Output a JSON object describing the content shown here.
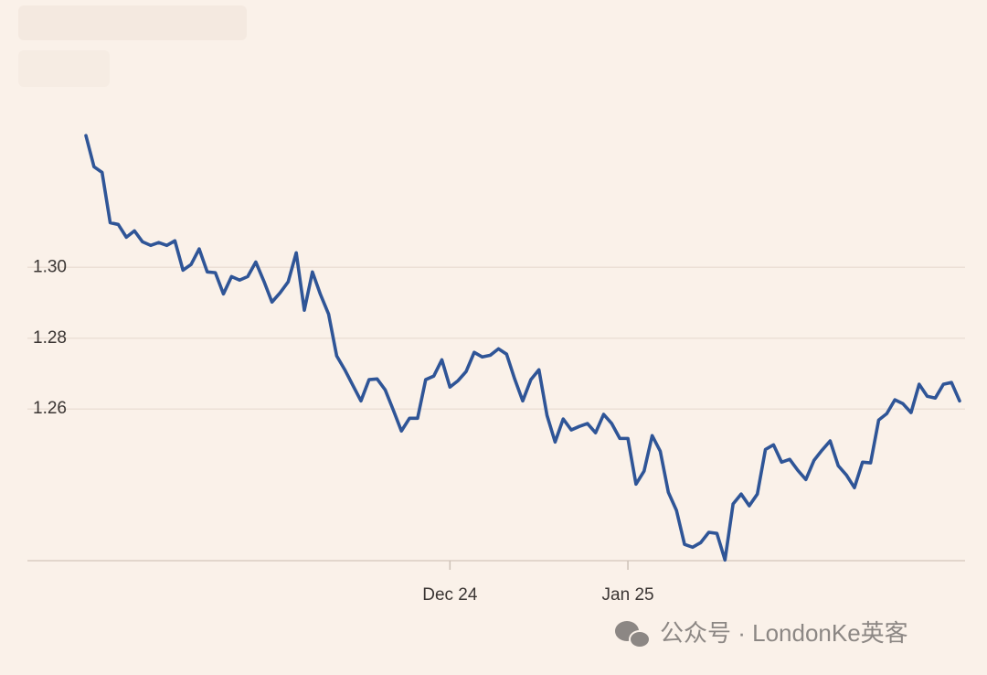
{
  "chart_data": {
    "type": "line",
    "categories": [
      null,
      null,
      null,
      null,
      null,
      null,
      null,
      null,
      null,
      null,
      null,
      null,
      null,
      null,
      null,
      null,
      null,
      null,
      null,
      null,
      null,
      null,
      null,
      null,
      null,
      null,
      null,
      null,
      null,
      null,
      null,
      null,
      null,
      null,
      null,
      null,
      null,
      null,
      null,
      null,
      null,
      null,
      null,
      null,
      null,
      "Dec 24",
      null,
      null,
      null,
      null,
      null,
      null,
      null,
      null,
      null,
      null,
      null,
      null,
      null,
      null,
      null,
      null,
      null,
      null,
      null,
      null,
      null,
      "Jan 25",
      null,
      null,
      null,
      null,
      null,
      null,
      null,
      null,
      null,
      null,
      null,
      null,
      null,
      null,
      null,
      null,
      null,
      null,
      null,
      null,
      null,
      null,
      null,
      null,
      null,
      null,
      null,
      null,
      null,
      null,
      null,
      null,
      null,
      null,
      null,
      null,
      null,
      null,
      null,
      null,
      null
    ],
    "values": [
      1.3372,
      1.3284,
      1.3268,
      1.3126,
      1.3121,
      1.3085,
      1.3103,
      1.3072,
      1.3062,
      1.307,
      1.3062,
      1.3075,
      1.2992,
      1.3008,
      1.3052,
      1.2987,
      1.2985,
      1.2925,
      1.2974,
      1.2964,
      1.2974,
      1.3015,
      1.2961,
      1.2902,
      1.2928,
      1.2959,
      1.3041,
      1.2879,
      1.2987,
      1.2923,
      1.2868,
      1.275,
      1.2711,
      1.2667,
      1.2623,
      1.2683,
      1.2685,
      1.2654,
      1.2597,
      1.2538,
      1.2574,
      1.2574,
      1.2683,
      1.2693,
      1.2739,
      1.2662,
      1.268,
      1.2706,
      1.276,
      1.2747,
      1.2752,
      1.277,
      1.2755,
      1.2685,
      1.2623,
      1.2683,
      1.2711,
      1.2582,
      1.2507,
      1.2572,
      1.2541,
      1.2551,
      1.2559,
      1.2533,
      1.2585,
      1.2559,
      1.2517,
      1.2517,
      1.2388,
      1.2425,
      1.2525,
      1.2481,
      1.2365,
      1.2314,
      1.2218,
      1.221,
      1.2223,
      1.2252,
      1.2249,
      1.2174,
      1.2332,
      1.236,
      1.2327,
      1.236,
      1.2486,
      1.2499,
      1.245,
      1.2458,
      1.2427,
      1.2401,
      1.2455,
      1.2484,
      1.251,
      1.244,
      1.2414,
      1.2378,
      1.245,
      1.2448,
      1.2569,
      1.2587,
      1.2626,
      1.2615,
      1.259,
      1.267,
      1.2636,
      1.2631,
      1.267,
      1.2675,
      1.2623
    ],
    "color": "#2f5597",
    "ylim": [
      1.2172,
      1.345
    ],
    "yticks": [
      {
        "value": 1.3,
        "label": "1.30"
      },
      1.28,
      1.26
    ],
    "grid": true
  },
  "watermark": "公众号 · LondonKe英客"
}
